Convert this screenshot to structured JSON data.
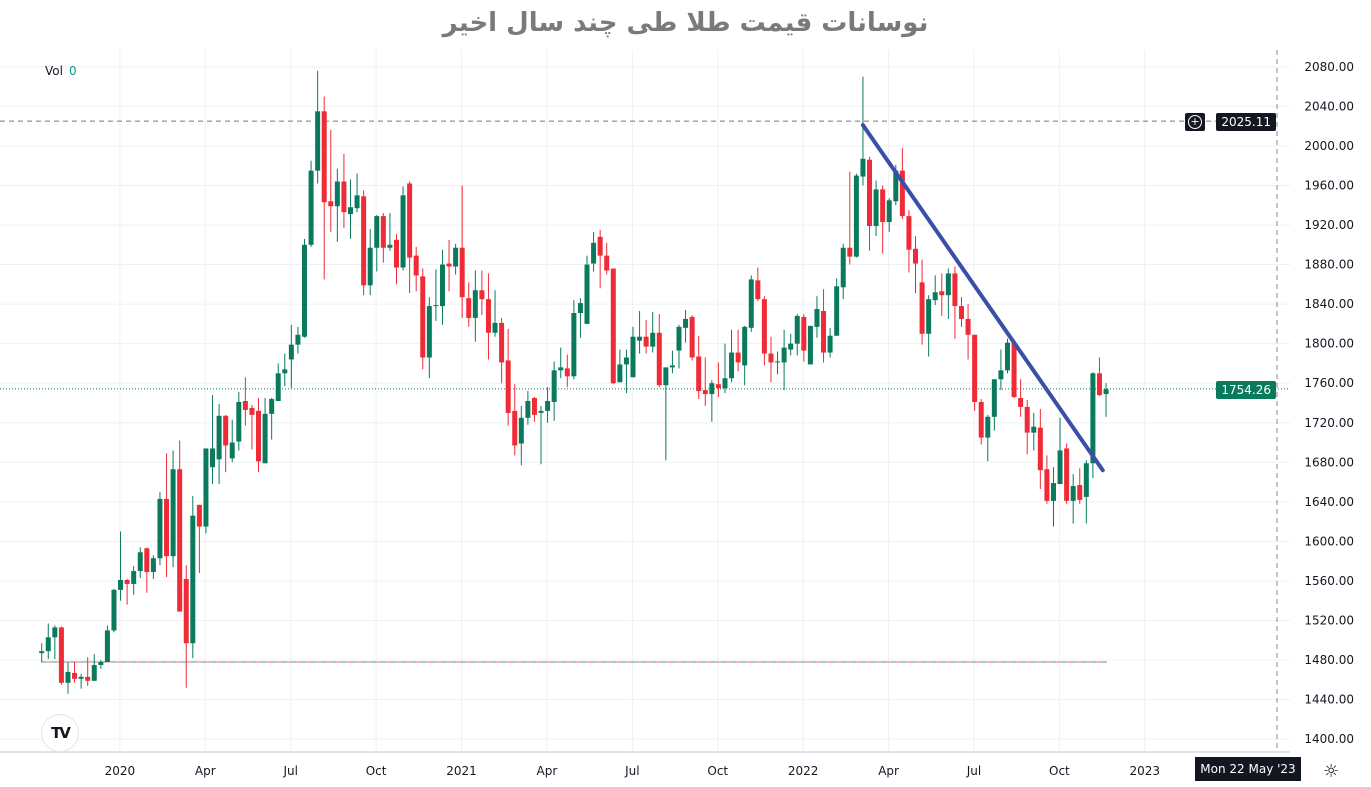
{
  "title": "نوسانات قیمت طلا طی چند سال اخیر",
  "legend": {
    "vol_label": "Vol",
    "vol_value": "0"
  },
  "logo": "TV",
  "crosshair_date": "Mon 22 May '23",
  "settings_icon": "sun-gear-icon",
  "colors": {
    "up": "#0b7a5c",
    "down": "#ef2b37",
    "trendline": "#3a4fa8",
    "grid": "#eef0f5"
  },
  "chart_data": {
    "type": "candlestick",
    "interval": "weekly",
    "ylim": [
      1387,
      2097
    ],
    "grid": true,
    "y_ticks": [
      "1400.00",
      "1440.00",
      "1480.00",
      "1520.00",
      "1560.00",
      "1600.00",
      "1640.00",
      "1680.00",
      "1720.00",
      "1760.00",
      "1800.00",
      "1840.00",
      "1880.00",
      "1920.00",
      "1960.00",
      "2000.00",
      "2040.00",
      "2080.00"
    ],
    "x_ticks": [
      "2020",
      "Apr",
      "Jul",
      "Oct",
      "2021",
      "Apr",
      "Jul",
      "Oct",
      "2022",
      "Apr",
      "Jul",
      "Oct",
      "2023"
    ],
    "price_labels": {
      "high_line": "2025.11",
      "last": "1754.26"
    },
    "prev_close_line": 1478,
    "trendline": {
      "from": {
        "bar": 125,
        "price": 2021
      },
      "to": {
        "bar": 161.5,
        "price": 1672
      }
    },
    "ohlc": [
      [
        1487,
        1497,
        1478,
        1489
      ],
      [
        1489,
        1517,
        1481,
        1503
      ],
      [
        1503,
        1515,
        1481,
        1513
      ],
      [
        1513,
        1514,
        1455,
        1457
      ],
      [
        1457,
        1478,
        1446,
        1468
      ],
      [
        1467,
        1478,
        1457,
        1461
      ],
      [
        1461,
        1466,
        1451,
        1463
      ],
      [
        1463,
        1483,
        1454,
        1459
      ],
      [
        1459,
        1486,
        1459,
        1475
      ],
      [
        1475,
        1480,
        1471,
        1478
      ],
      [
        1478,
        1515,
        1478,
        1510
      ],
      [
        1510,
        1552,
        1508,
        1551
      ],
      [
        1551,
        1610,
        1540,
        1561
      ],
      [
        1561,
        1562,
        1536,
        1557
      ],
      [
        1557,
        1575,
        1546,
        1570
      ],
      [
        1570,
        1594,
        1563,
        1589
      ],
      [
        1593,
        1594,
        1548,
        1569
      ],
      [
        1569,
        1586,
        1562,
        1583
      ],
      [
        1583,
        1650,
        1576,
        1643
      ],
      [
        1643,
        1689,
        1564,
        1585
      ],
      [
        1585,
        1692,
        1574,
        1673
      ],
      [
        1673,
        1702,
        1529,
        1529
      ],
      [
        1562,
        1576,
        1452,
        1497
      ],
      [
        1497,
        1646,
        1482,
        1626
      ],
      [
        1637,
        1637,
        1568,
        1615
      ],
      [
        1615,
        1694,
        1608,
        1694
      ],
      [
        1675,
        1748,
        1658,
        1694
      ],
      [
        1683,
        1739,
        1658,
        1727
      ],
      [
        1727,
        1728,
        1670,
        1697
      ],
      [
        1684,
        1723,
        1680,
        1700
      ],
      [
        1701,
        1751,
        1692,
        1741
      ],
      [
        1742,
        1766,
        1717,
        1733
      ],
      [
        1735,
        1738,
        1693,
        1728
      ],
      [
        1732,
        1745,
        1670,
        1681
      ],
      [
        1679,
        1745,
        1679,
        1729
      ],
      [
        1729,
        1745,
        1703,
        1744
      ],
      [
        1742,
        1780,
        1742,
        1770
      ],
      [
        1770,
        1790,
        1757,
        1774
      ],
      [
        1784,
        1819,
        1755,
        1799
      ],
      [
        1799,
        1817,
        1790,
        1809
      ],
      [
        1807,
        1906,
        1806,
        1900
      ],
      [
        1900,
        1985,
        1898,
        1975
      ],
      [
        1975,
        2076,
        1962,
        2035
      ],
      [
        2035,
        2050,
        1865,
        1943
      ],
      [
        1944,
        2016,
        1913,
        1939
      ],
      [
        1939,
        1977,
        1903,
        1964
      ],
      [
        1964,
        1992,
        1917,
        1933
      ],
      [
        1931,
        1966,
        1906,
        1938
      ],
      [
        1937,
        1972,
        1933,
        1950
      ],
      [
        1949,
        1955,
        1849,
        1859
      ],
      [
        1859,
        1916,
        1849,
        1897
      ],
      [
        1897,
        1930,
        1873,
        1929
      ],
      [
        1929,
        1932,
        1882,
        1897
      ],
      [
        1897,
        1932,
        1894,
        1900
      ],
      [
        1905,
        1911,
        1860,
        1877
      ],
      [
        1877,
        1959,
        1874,
        1950
      ],
      [
        1962,
        1964,
        1851,
        1887
      ],
      [
        1889,
        1898,
        1853,
        1869
      ],
      [
        1868,
        1876,
        1774,
        1786
      ],
      [
        1786,
        1847,
        1765,
        1838
      ],
      [
        1838,
        1875,
        1823,
        1839
      ],
      [
        1838,
        1895,
        1819,
        1880
      ],
      [
        1881,
        1905,
        1853,
        1878
      ],
      [
        1878,
        1901,
        1870,
        1897
      ],
      [
        1897,
        1960,
        1826,
        1847
      ],
      [
        1846,
        1862,
        1817,
        1826
      ],
      [
        1826,
        1874,
        1802,
        1854
      ],
      [
        1854,
        1874,
        1829,
        1845
      ],
      [
        1845,
        1871,
        1784,
        1811
      ],
      [
        1811,
        1854,
        1807,
        1821
      ],
      [
        1821,
        1826,
        1760,
        1781
      ],
      [
        1783,
        1815,
        1717,
        1730
      ],
      [
        1732,
        1759,
        1687,
        1697
      ],
      [
        1699,
        1737,
        1677,
        1725
      ],
      [
        1725,
        1752,
        1718,
        1742
      ],
      [
        1745,
        1746,
        1721,
        1728
      ],
      [
        1730,
        1737,
        1678,
        1732
      ],
      [
        1732,
        1756,
        1720,
        1742
      ],
      [
        1741,
        1782,
        1722,
        1773
      ],
      [
        1773,
        1796,
        1765,
        1776
      ],
      [
        1775,
        1789,
        1756,
        1767
      ],
      [
        1767,
        1844,
        1764,
        1831
      ],
      [
        1831,
        1846,
        1806,
        1841
      ],
      [
        1820,
        1889,
        1820,
        1880
      ],
      [
        1881,
        1913,
        1873,
        1902
      ],
      [
        1908,
        1915,
        1856,
        1889
      ],
      [
        1889,
        1902,
        1870,
        1874
      ],
      [
        1876,
        1876,
        1759,
        1760
      ],
      [
        1761,
        1794,
        1761,
        1779
      ],
      [
        1779,
        1794,
        1750,
        1786
      ],
      [
        1766,
        1817,
        1766,
        1807
      ],
      [
        1803,
        1833,
        1790,
        1807
      ],
      [
        1807,
        1824,
        1790,
        1797
      ],
      [
        1797,
        1832,
        1791,
        1811
      ],
      [
        1811,
        1830,
        1756,
        1758
      ],
      [
        1758,
        1776,
        1682,
        1776
      ],
      [
        1776,
        1793,
        1770,
        1778
      ],
      [
        1793,
        1819,
        1775,
        1817
      ],
      [
        1816,
        1834,
        1801,
        1825
      ],
      [
        1827,
        1829,
        1783,
        1786
      ],
      [
        1787,
        1808,
        1744,
        1752
      ],
      [
        1753,
        1786,
        1737,
        1749
      ],
      [
        1749,
        1763,
        1721,
        1760
      ],
      [
        1759,
        1781,
        1746,
        1755
      ],
      [
        1755,
        1800,
        1750,
        1765
      ],
      [
        1765,
        1814,
        1761,
        1791
      ],
      [
        1791,
        1814,
        1772,
        1781
      ],
      [
        1778,
        1818,
        1758,
        1817
      ],
      [
        1816,
        1869,
        1812,
        1865
      ],
      [
        1864,
        1877,
        1843,
        1845
      ],
      [
        1845,
        1848,
        1778,
        1790
      ],
      [
        1790,
        1807,
        1761,
        1781
      ],
      [
        1781,
        1792,
        1769,
        1782
      ],
      [
        1781,
        1814,
        1753,
        1796
      ],
      [
        1794,
        1810,
        1788,
        1800
      ],
      [
        1800,
        1830,
        1788,
        1828
      ],
      [
        1827,
        1830,
        1782,
        1793
      ],
      [
        1779,
        1818,
        1779,
        1818
      ],
      [
        1817,
        1848,
        1806,
        1835
      ],
      [
        1833,
        1855,
        1781,
        1791
      ],
      [
        1791,
        1816,
        1786,
        1808
      ],
      [
        1808,
        1866,
        1808,
        1858
      ],
      [
        1857,
        1901,
        1845,
        1897
      ],
      [
        1897,
        1974,
        1880,
        1888
      ],
      [
        1888,
        1972,
        1887,
        1970
      ],
      [
        1969,
        2070,
        1960,
        1987
      ],
      [
        1986,
        1989,
        1894,
        1919
      ],
      [
        1919,
        1965,
        1909,
        1956
      ],
      [
        1956,
        1960,
        1891,
        1923
      ],
      [
        1923,
        1947,
        1913,
        1945
      ],
      [
        1944,
        1981,
        1940,
        1975
      ],
      [
        1975,
        1998,
        1926,
        1929
      ],
      [
        1929,
        1935,
        1872,
        1895
      ],
      [
        1896,
        1909,
        1851,
        1881
      ],
      [
        1862,
        1885,
        1799,
        1810
      ],
      [
        1810,
        1849,
        1787,
        1845
      ],
      [
        1844,
        1869,
        1839,
        1852
      ],
      [
        1853,
        1871,
        1828,
        1849
      ],
      [
        1849,
        1876,
        1825,
        1871
      ],
      [
        1871,
        1878,
        1805,
        1838
      ],
      [
        1838,
        1847,
        1817,
        1825
      ],
      [
        1825,
        1840,
        1784,
        1809
      ],
      [
        1809,
        1809,
        1732,
        1741
      ],
      [
        1741,
        1744,
        1698,
        1705
      ],
      [
        1705,
        1728,
        1681,
        1726
      ],
      [
        1726,
        1764,
        1712,
        1764
      ],
      [
        1764,
        1794,
        1753,
        1773
      ],
      [
        1773,
        1805,
        1770,
        1801
      ],
      [
        1801,
        1802,
        1745,
        1746
      ],
      [
        1745,
        1764,
        1726,
        1736
      ],
      [
        1736,
        1743,
        1688,
        1710
      ],
      [
        1710,
        1730,
        1692,
        1716
      ],
      [
        1715,
        1734,
        1653,
        1672
      ],
      [
        1673,
        1687,
        1638,
        1641
      ],
      [
        1641,
        1675,
        1615,
        1659
      ],
      [
        1658,
        1725,
        1658,
        1692
      ],
      [
        1694,
        1699,
        1638,
        1641
      ],
      [
        1641,
        1668,
        1618,
        1656
      ],
      [
        1657,
        1674,
        1638,
        1642
      ],
      [
        1645,
        1682,
        1618,
        1679
      ],
      [
        1679,
        1771,
        1664,
        1770
      ],
      [
        1770,
        1786,
        1747,
        1748
      ],
      [
        1749,
        1760,
        1726,
        1754
      ]
    ]
  }
}
